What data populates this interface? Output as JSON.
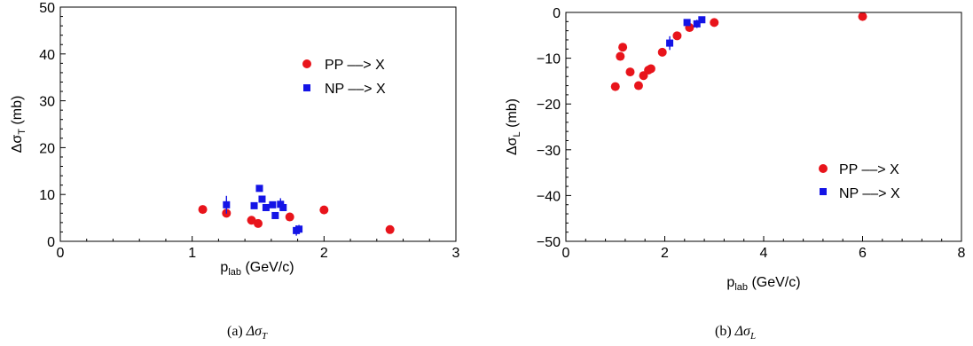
{
  "chart_data": [
    {
      "type": "scatter",
      "xlabel": {
        "main": "p",
        "sub": "lab",
        "rest": " (GeV/c)"
      },
      "ylabel": {
        "main": "Δσ",
        "sub": "T",
        "rest": " (mb)"
      },
      "xlim": [
        0,
        3
      ],
      "ylim": [
        0,
        50
      ],
      "xticks": [
        "0",
        "1",
        "2",
        "3"
      ],
      "yticks": [
        "0",
        "10",
        "20",
        "30",
        "40",
        "50"
      ],
      "legend_position": "top-right",
      "series": [
        {
          "name": "PP ––> X",
          "marker": "circle",
          "color": "#e8141b",
          "x": [
            1.08,
            1.26,
            1.45,
            1.5,
            1.74,
            2.0,
            2.5
          ],
          "y": [
            6.8,
            6.0,
            4.5,
            3.8,
            5.2,
            6.7,
            2.5
          ],
          "err": [
            0,
            0.6,
            0,
            0.4,
            0,
            0,
            0
          ]
        },
        {
          "name": "NP ––> X",
          "marker": "square",
          "color": "#1414e6",
          "x": [
            1.26,
            1.47,
            1.51,
            1.53,
            1.56,
            1.61,
            1.63,
            1.67,
            1.69,
            1.79,
            1.81
          ],
          "y": [
            7.8,
            7.6,
            11.3,
            9.0,
            7.2,
            7.8,
            5.5,
            7.9,
            7.2,
            2.3,
            2.6
          ],
          "err": [
            1.9,
            0.5,
            0.7,
            0.6,
            0.6,
            0.7,
            0.6,
            1.3,
            0.6,
            1.1,
            0.9
          ]
        }
      ]
    },
    {
      "type": "scatter",
      "xlabel": {
        "main": "p",
        "sub": "lab",
        "rest": " (GeV/c)"
      },
      "ylabel": {
        "main": "Δσ",
        "sub": "L",
        "rest": " (mb)"
      },
      "xlim": [
        0,
        8
      ],
      "ylim": [
        -50,
        0
      ],
      "xticks": [
        "0",
        "2",
        "4",
        "6",
        "8"
      ],
      "yticks": [
        "0",
        "−10",
        "−20",
        "−30",
        "−40",
        "−50"
      ],
      "legend_position": "bottom-right",
      "series": [
        {
          "name": "PP ––> X",
          "marker": "circle",
          "color": "#e8141b",
          "x": [
            1.0,
            1.1,
            1.15,
            1.3,
            1.47,
            1.57,
            1.67,
            1.72,
            1.95,
            2.25,
            2.5,
            3.0,
            6.0
          ],
          "y": [
            -16.2,
            -9.6,
            -7.6,
            -13.0,
            -16.0,
            -13.8,
            -12.6,
            -12.3,
            -8.7,
            -5.1,
            -3.3,
            -2.2,
            -0.9
          ],
          "err": [
            0,
            0,
            0,
            0,
            0,
            0,
            0,
            0,
            0,
            0,
            0,
            0,
            0
          ]
        },
        {
          "name": "NP ––> X",
          "marker": "square",
          "color": "#1414e6",
          "x": [
            2.1,
            2.45,
            2.65,
            2.75
          ],
          "y": [
            -6.7,
            -2.2,
            -2.5,
            -1.6
          ],
          "err": [
            1.5,
            0.6,
            0.9,
            0.5
          ]
        }
      ]
    }
  ],
  "captions": [
    {
      "prefix": "(a) ",
      "symbol": "Δσ",
      "sub": "T"
    },
    {
      "prefix": "(b) ",
      "symbol": "Δσ",
      "sub": "L"
    }
  ]
}
